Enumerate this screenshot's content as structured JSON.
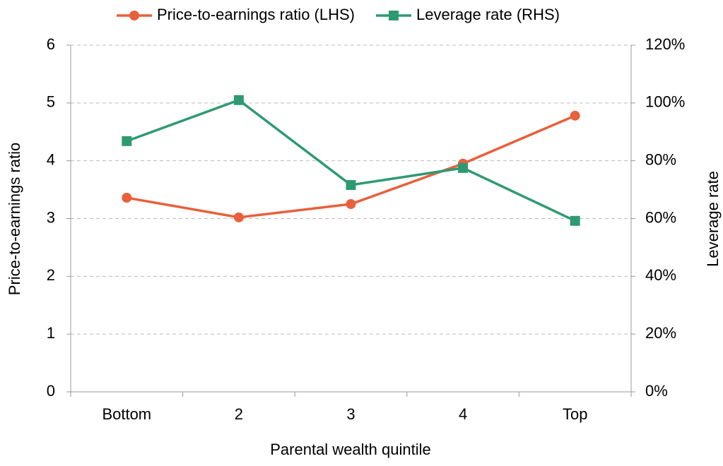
{
  "chart_data": {
    "type": "line",
    "x_label": "Parental wealth quintile",
    "y_label": "Price-to-earnings ratio",
    "y2_label": "Leverage rate",
    "categories": [
      "Bottom",
      "2",
      "3",
      "4",
      "Top"
    ],
    "series": [
      {
        "name": "Price-to-earnings ratio (LHS)",
        "color": "#e8603c",
        "marker": "circle",
        "values": [
          3.36,
          3.02,
          3.25,
          3.95,
          4.78
        ]
      },
      {
        "name": "Leverage rate (RHS)",
        "color": "#2e9a72",
        "marker": "square",
        "axis": "y2",
        "values": [
          86.8,
          101,
          71.6,
          77.5,
          59.2
        ]
      }
    ],
    "ylim": [
      0,
      6
    ],
    "yticks": [
      0,
      1,
      2,
      3,
      4,
      5,
      6
    ],
    "y2lim": [
      0,
      120
    ],
    "y2ticks": [
      {
        "value": 0,
        "label": "0%"
      },
      {
        "value": 20,
        "label": "20%"
      },
      {
        "value": 40,
        "label": "40%"
      },
      {
        "value": 60,
        "label": "60%"
      },
      {
        "value": 80,
        "label": "80%"
      },
      {
        "value": 100,
        "label": "100%"
      },
      {
        "value": 120,
        "label": "120%"
      }
    ],
    "grid": true,
    "legend": "top"
  }
}
